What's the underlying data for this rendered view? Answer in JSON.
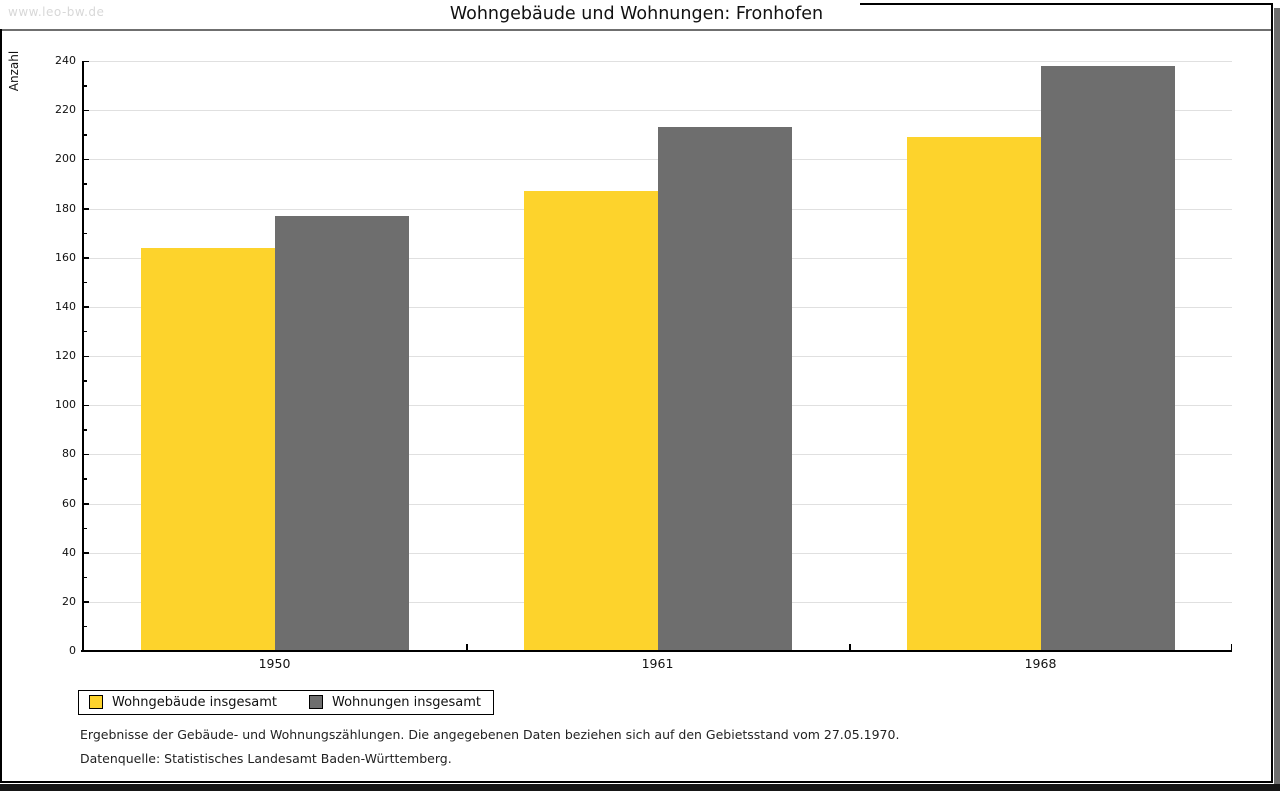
{
  "watermark": "www.leo-bw.de",
  "header": {
    "title": "Wohngebäude und Wohnungen: Fronhofen"
  },
  "chart_data": {
    "type": "bar",
    "title": "Wohngebäude und Wohnungen: Fronhofen",
    "ylabel": "Anzahl",
    "xlabel": "",
    "categories": [
      "1950",
      "1961",
      "1968"
    ],
    "series": [
      {
        "name": "Wohngebäude insgesamt",
        "color": "#fdd32c",
        "values": [
          164,
          187,
          209
        ]
      },
      {
        "name": "Wohnungen insgesamt",
        "color": "#6e6e6e",
        "values": [
          177,
          213,
          238
        ]
      }
    ],
    "ylim": [
      0,
      240
    ],
    "ytick_step": 20,
    "minor_tick_step": 10,
    "grid": true,
    "gridline_color": "#e0e0e0",
    "legend_position": "bottom-left"
  },
  "footnotes": {
    "line1": "Ergebnisse der Gebäude- und Wohnungszählungen. Die angegebenen Daten beziehen sich auf den Gebietsstand vom 27.05.1970.",
    "line2": "Datenquelle: Statistisches Landesamt Baden-Württemberg."
  }
}
